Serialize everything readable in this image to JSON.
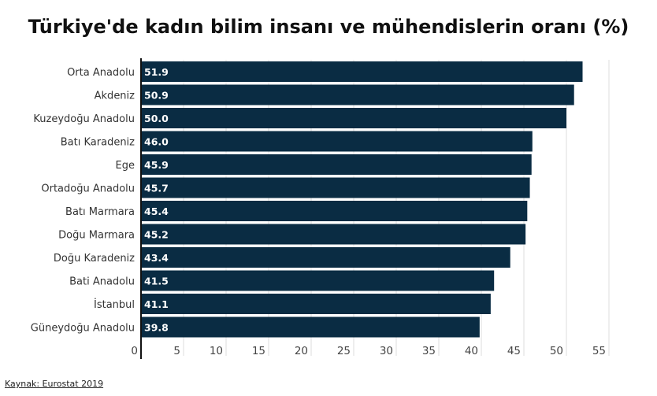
{
  "chart_data": {
    "type": "bar",
    "orientation": "horizontal",
    "title": "Türkiye'de kadın bilim insanı ve mühendislerin oranı (%)",
    "categories": [
      "Orta Anadolu",
      "Akdeniz",
      "Kuzeydoğu Anadolu",
      "Batı Karadeniz",
      "Ege",
      "Ortadoğu Anadolu",
      "Batı Marmara",
      "Doğu Marmara",
      "Doğu Karadeniz",
      "Bati Anadolu",
      "İstanbul",
      "Güneydoğu Anadolu"
    ],
    "values": [
      51.9,
      50.9,
      50.0,
      46.0,
      45.9,
      45.7,
      45.4,
      45.2,
      43.4,
      41.5,
      41.1,
      39.8
    ],
    "value_labels": [
      "51.9",
      "50.9",
      "50.0",
      "46.0",
      "45.9",
      "45.7",
      "45.4",
      "45.2",
      "43.4",
      "41.5",
      "41.1",
      "39.8"
    ],
    "xlim": [
      0,
      55
    ],
    "xticks": [
      "0",
      "5",
      "10",
      "15",
      "20",
      "25",
      "30",
      "35",
      "40",
      "45",
      "50",
      "55"
    ],
    "grid": true,
    "bar_color": "#0a2c43",
    "source": "Kaynak: Eurostat 2019"
  }
}
